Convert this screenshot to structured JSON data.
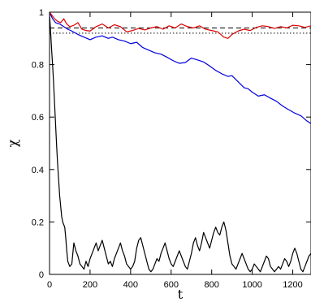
{
  "chart_data": {
    "type": "line",
    "title": "",
    "xlabel": "t",
    "ylabel": "χ",
    "xlim": [
      0,
      1290
    ],
    "ylim": [
      0,
      1
    ],
    "grid": false,
    "legend": "none",
    "x_ticks": [
      0,
      200,
      400,
      600,
      800,
      1000,
      1200
    ],
    "x_tick_labels": [
      "0",
      "200",
      "400",
      "600",
      "800",
      "1000",
      "1200"
    ],
    "y_ticks": [
      0,
      0.2,
      0.4,
      0.6,
      0.8,
      1
    ],
    "y_tick_labels": [
      "0",
      "0.2",
      "0.4",
      "0.6",
      "0.8",
      "1"
    ],
    "reference_lines": [
      {
        "style": "dashed",
        "y": 0.94,
        "color": "#000000"
      },
      {
        "style": "dotted",
        "y": 0.92,
        "color": "#000000"
      }
    ],
    "series": [
      {
        "color": "#0000dd",
        "points": [
          [
            0,
            1.0
          ],
          [
            15,
            0.975
          ],
          [
            30,
            0.96
          ],
          [
            50,
            0.955
          ],
          [
            70,
            0.945
          ],
          [
            90,
            0.935
          ],
          [
            110,
            0.928
          ],
          [
            140,
            0.915
          ],
          [
            170,
            0.905
          ],
          [
            200,
            0.895
          ],
          [
            230,
            0.905
          ],
          [
            260,
            0.91
          ],
          [
            290,
            0.9
          ],
          [
            310,
            0.905
          ],
          [
            340,
            0.895
          ],
          [
            370,
            0.89
          ],
          [
            400,
            0.88
          ],
          [
            430,
            0.885
          ],
          [
            460,
            0.865
          ],
          [
            490,
            0.855
          ],
          [
            520,
            0.845
          ],
          [
            550,
            0.84
          ],
          [
            580,
            0.828
          ],
          [
            610,
            0.815
          ],
          [
            640,
            0.805
          ],
          [
            670,
            0.808
          ],
          [
            700,
            0.825
          ],
          [
            730,
            0.818
          ],
          [
            760,
            0.81
          ],
          [
            790,
            0.795
          ],
          [
            820,
            0.778
          ],
          [
            850,
            0.765
          ],
          [
            880,
            0.755
          ],
          [
            900,
            0.758
          ],
          [
            930,
            0.735
          ],
          [
            960,
            0.712
          ],
          [
            980,
            0.708
          ],
          [
            1000,
            0.695
          ],
          [
            1030,
            0.68
          ],
          [
            1060,
            0.685
          ],
          [
            1090,
            0.672
          ],
          [
            1120,
            0.66
          ],
          [
            1150,
            0.642
          ],
          [
            1180,
            0.628
          ],
          [
            1210,
            0.615
          ],
          [
            1240,
            0.605
          ],
          [
            1270,
            0.585
          ],
          [
            1290,
            0.575
          ]
        ]
      },
      {
        "color": "#dd0000",
        "points": [
          [
            0,
            1.0
          ],
          [
            10,
            0.99
          ],
          [
            25,
            0.975
          ],
          [
            40,
            0.965
          ],
          [
            55,
            0.96
          ],
          [
            70,
            0.975
          ],
          [
            85,
            0.955
          ],
          [
            100,
            0.945
          ],
          [
            120,
            0.95
          ],
          [
            140,
            0.96
          ],
          [
            160,
            0.935
          ],
          [
            180,
            0.93
          ],
          [
            200,
            0.928
          ],
          [
            230,
            0.945
          ],
          [
            260,
            0.955
          ],
          [
            290,
            0.94
          ],
          [
            320,
            0.952
          ],
          [
            350,
            0.945
          ],
          [
            380,
            0.925
          ],
          [
            410,
            0.93
          ],
          [
            440,
            0.938
          ],
          [
            470,
            0.932
          ],
          [
            500,
            0.94
          ],
          [
            530,
            0.945
          ],
          [
            560,
            0.935
          ],
          [
            590,
            0.948
          ],
          [
            620,
            0.94
          ],
          [
            650,
            0.955
          ],
          [
            680,
            0.945
          ],
          [
            710,
            0.94
          ],
          [
            740,
            0.948
          ],
          [
            770,
            0.935
          ],
          [
            800,
            0.93
          ],
          [
            830,
            0.925
          ],
          [
            860,
            0.905
          ],
          [
            880,
            0.9
          ],
          [
            900,
            0.915
          ],
          [
            930,
            0.928
          ],
          [
            960,
            0.935
          ],
          [
            990,
            0.93
          ],
          [
            1020,
            0.942
          ],
          [
            1050,
            0.948
          ],
          [
            1080,
            0.945
          ],
          [
            1110,
            0.938
          ],
          [
            1140,
            0.945
          ],
          [
            1170,
            0.94
          ],
          [
            1200,
            0.95
          ],
          [
            1230,
            0.948
          ],
          [
            1260,
            0.942
          ],
          [
            1290,
            0.948
          ]
        ]
      },
      {
        "color": "#000000",
        "points": [
          [
            0,
            0.99
          ],
          [
            5,
            0.93
          ],
          [
            10,
            0.86
          ],
          [
            15,
            0.8
          ],
          [
            20,
            0.73
          ],
          [
            25,
            0.65
          ],
          [
            30,
            0.57
          ],
          [
            35,
            0.49
          ],
          [
            40,
            0.42
          ],
          [
            45,
            0.36
          ],
          [
            50,
            0.3
          ],
          [
            55,
            0.26
          ],
          [
            60,
            0.22
          ],
          [
            65,
            0.2
          ],
          [
            70,
            0.19
          ],
          [
            75,
            0.18
          ],
          [
            80,
            0.14
          ],
          [
            85,
            0.09
          ],
          [
            90,
            0.05
          ],
          [
            100,
            0.03
          ],
          [
            110,
            0.04
          ],
          [
            120,
            0.12
          ],
          [
            130,
            0.09
          ],
          [
            140,
            0.07
          ],
          [
            150,
            0.04
          ],
          [
            160,
            0.03
          ],
          [
            170,
            0.02
          ],
          [
            180,
            0.05
          ],
          [
            190,
            0.03
          ],
          [
            200,
            0.06
          ],
          [
            210,
            0.08
          ],
          [
            220,
            0.1
          ],
          [
            230,
            0.12
          ],
          [
            240,
            0.09
          ],
          [
            250,
            0.11
          ],
          [
            260,
            0.13
          ],
          [
            270,
            0.1
          ],
          [
            280,
            0.07
          ],
          [
            290,
            0.04
          ],
          [
            300,
            0.05
          ],
          [
            310,
            0.03
          ],
          [
            320,
            0.06
          ],
          [
            330,
            0.08
          ],
          [
            340,
            0.1
          ],
          [
            350,
            0.12
          ],
          [
            360,
            0.09
          ],
          [
            370,
            0.07
          ],
          [
            380,
            0.04
          ],
          [
            390,
            0.03
          ],
          [
            400,
            0.02
          ],
          [
            410,
            0.03
          ],
          [
            420,
            0.05
          ],
          [
            430,
            0.1
          ],
          [
            440,
            0.13
          ],
          [
            450,
            0.14
          ],
          [
            460,
            0.11
          ],
          [
            470,
            0.08
          ],
          [
            480,
            0.05
          ],
          [
            490,
            0.02
          ],
          [
            500,
            0.01
          ],
          [
            510,
            0.02
          ],
          [
            520,
            0.04
          ],
          [
            530,
            0.06
          ],
          [
            540,
            0.05
          ],
          [
            550,
            0.08
          ],
          [
            560,
            0.1
          ],
          [
            570,
            0.12
          ],
          [
            580,
            0.09
          ],
          [
            590,
            0.06
          ],
          [
            600,
            0.04
          ],
          [
            610,
            0.03
          ],
          [
            620,
            0.05
          ],
          [
            630,
            0.07
          ],
          [
            640,
            0.09
          ],
          [
            650,
            0.07
          ],
          [
            660,
            0.05
          ],
          [
            670,
            0.03
          ],
          [
            680,
            0.02
          ],
          [
            690,
            0.05
          ],
          [
            700,
            0.08
          ],
          [
            710,
            0.12
          ],
          [
            720,
            0.14
          ],
          [
            730,
            0.11
          ],
          [
            740,
            0.09
          ],
          [
            750,
            0.12
          ],
          [
            760,
            0.16
          ],
          [
            770,
            0.14
          ],
          [
            780,
            0.12
          ],
          [
            790,
            0.1
          ],
          [
            800,
            0.13
          ],
          [
            810,
            0.16
          ],
          [
            820,
            0.18
          ],
          [
            830,
            0.16
          ],
          [
            840,
            0.15
          ],
          [
            850,
            0.18
          ],
          [
            860,
            0.2
          ],
          [
            870,
            0.17
          ],
          [
            880,
            0.12
          ],
          [
            890,
            0.07
          ],
          [
            900,
            0.04
          ],
          [
            910,
            0.03
          ],
          [
            920,
            0.02
          ],
          [
            930,
            0.04
          ],
          [
            940,
            0.06
          ],
          [
            950,
            0.08
          ],
          [
            960,
            0.06
          ],
          [
            970,
            0.04
          ],
          [
            980,
            0.02
          ],
          [
            990,
            0.01
          ],
          [
            1000,
            0.02
          ],
          [
            1010,
            0.04
          ],
          [
            1020,
            0.03
          ],
          [
            1030,
            0.02
          ],
          [
            1040,
            0.01
          ],
          [
            1050,
            0.03
          ],
          [
            1060,
            0.05
          ],
          [
            1070,
            0.07
          ],
          [
            1080,
            0.06
          ],
          [
            1090,
            0.03
          ],
          [
            1100,
            0.02
          ],
          [
            1110,
            0.01
          ],
          [
            1120,
            0.02
          ],
          [
            1130,
            0.03
          ],
          [
            1140,
            0.02
          ],
          [
            1150,
            0.04
          ],
          [
            1160,
            0.06
          ],
          [
            1170,
            0.05
          ],
          [
            1180,
            0.03
          ],
          [
            1190,
            0.05
          ],
          [
            1200,
            0.08
          ],
          [
            1210,
            0.1
          ],
          [
            1220,
            0.08
          ],
          [
            1230,
            0.05
          ],
          [
            1240,
            0.02
          ],
          [
            1250,
            0.01
          ],
          [
            1260,
            0.03
          ],
          [
            1270,
            0.05
          ],
          [
            1280,
            0.07
          ],
          [
            1290,
            0.08
          ]
        ]
      }
    ]
  }
}
